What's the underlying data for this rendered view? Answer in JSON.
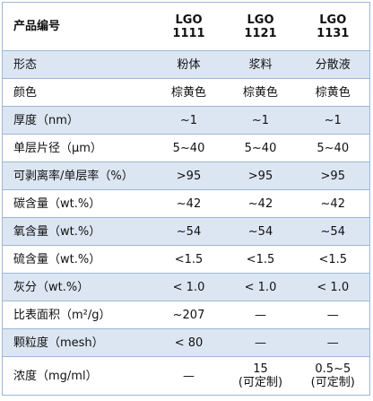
{
  "table": {
    "header": [
      "产品编号",
      "LGO\n1111",
      "LGO\n1121",
      "LGO\n1131"
    ],
    "rows": [
      [
        "形态",
        "粉体",
        "浆料",
        "分散液"
      ],
      [
        "颜色",
        "棕黄色",
        "棕黄色",
        "棕黄色"
      ],
      [
        "厚度（nm）",
        "~1",
        "~1",
        "~1"
      ],
      [
        "单层片径（μm）",
        "5~40",
        "5~40",
        "5~40"
      ],
      [
        "可剥离率/单层率（%）",
        ">95",
        ">95",
        ">95"
      ],
      [
        "碳含量（wt.%）",
        "~42",
        "~42",
        "~42"
      ],
      [
        "氧含量（wt.%）",
        "~54",
        "~54",
        "~54"
      ],
      [
        "硫含量（wt.%）",
        "<1.5",
        "<1.5",
        "<1.5"
      ],
      [
        "灰分（wt.%）",
        "< 1.0",
        "< 1.0",
        "< 1.0"
      ],
      [
        "比表面积（m²/g）",
        "~207",
        "—",
        "—"
      ],
      [
        "颗粒度（mesh）",
        "< 80",
        "—",
        "—"
      ],
      [
        "浓度（mg/ml）",
        "—",
        "15\n(可定制)",
        "0.5~5\n(可定制)"
      ]
    ]
  }
}
